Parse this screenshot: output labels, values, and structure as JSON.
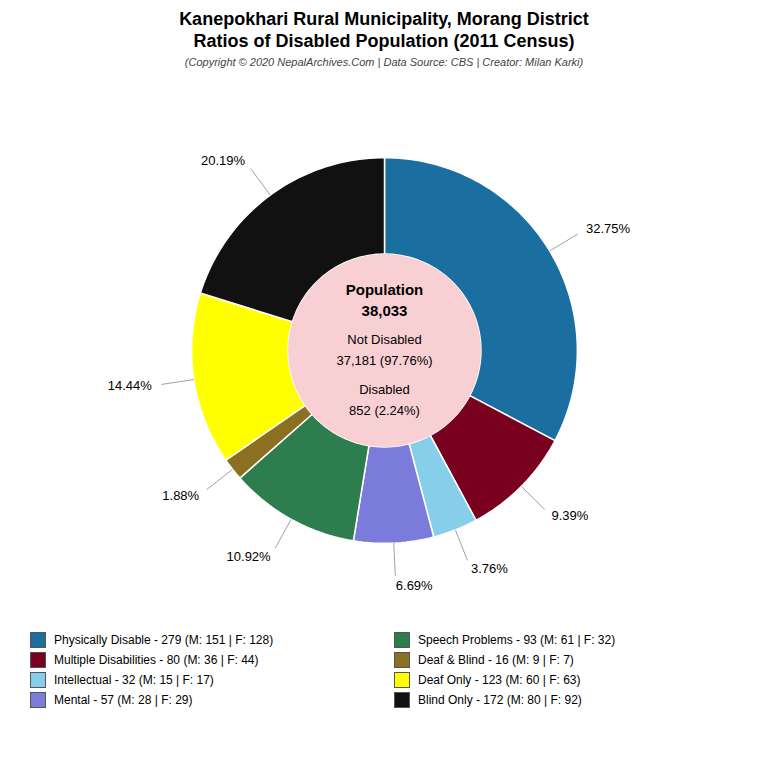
{
  "chart_data": {
    "type": "pie",
    "title": [
      "Kanepokhari Rural Municipality, Morang District",
      "Ratios of Disabled Population (2011 Census)"
    ],
    "subtitle": "(Copyright © 2020 NepalArchives.Com | Data Source: CBS | Creator: Milan Karki)",
    "categories": [
      "Physically Disable - 279 (M: 151 | F: 128)",
      "Multiple Disabilities - 80 (M: 36 | F: 44)",
      "Intellectual - 32 (M: 15 | F: 17)",
      "Mental - 57 (M: 28 | F: 29)",
      "Speech Problems - 93 (M: 61 | F: 32)",
      "Deaf & Blind - 16 (M: 9 | F: 7)",
      "Deaf Only - 123 (M: 60 | F: 63)",
      "Blind Only - 172 (M: 80 | F: 92)"
    ],
    "values": [
      32.75,
      9.39,
      3.76,
      6.69,
      10.92,
      1.88,
      14.44,
      20.19
    ],
    "value_labels": [
      "32.75%",
      "9.39%",
      "3.76%",
      "6.69%",
      "10.92%",
      "1.88%",
      "14.44%",
      "20.19%"
    ],
    "colors": [
      "#1a6fa0",
      "#7a0020",
      "#87ceeb",
      "#7b7bdb",
      "#2e7d4f",
      "#8b7022",
      "#ffff00",
      "#111111"
    ],
    "data_labels": true,
    "annotations": [
      "Population",
      "38,033",
      "Not Disabled",
      "37,181 (97.76%)",
      "Disabled",
      "852 (2.24%)"
    ],
    "legend": "bottom"
  }
}
